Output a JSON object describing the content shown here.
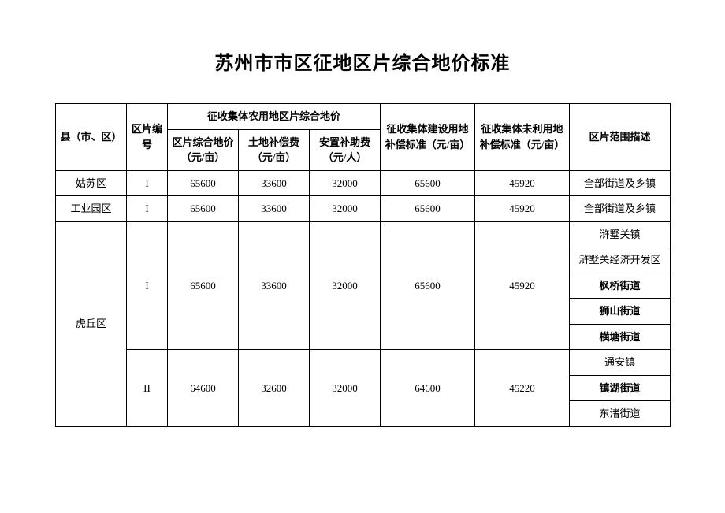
{
  "title": "苏州市市区征地区片综合地价标准",
  "header": {
    "county": "县（市、区）",
    "parcel": "区片编号",
    "ag_group": "征收集体农用地区片综合地价",
    "zhprice": "区片综合地价（元/亩）",
    "land": "土地补偿费（元/亩）",
    "resettle": "安置补助费（元/人）",
    "construction": "征收集体建设用地补偿标准（元/亩）",
    "unused": "征收集体未利用地补偿标准（元/亩）",
    "desc": "区片范围描述"
  },
  "rows": {
    "gusu": {
      "county": "姑苏区",
      "parcel": "I",
      "zhprice": "65600",
      "land": "33600",
      "resettle": "32000",
      "construction": "65600",
      "unused": "45920",
      "desc": "全部街道及乡镇"
    },
    "gyyq": {
      "county": "工业园区",
      "parcel": "I",
      "zhprice": "65600",
      "land": "33600",
      "resettle": "32000",
      "construction": "65600",
      "unused": "45920",
      "desc": "全部街道及乡镇"
    },
    "huqiu": {
      "county": "虎丘区",
      "p1": {
        "parcel": "I",
        "zhprice": "65600",
        "land": "33600",
        "resettle": "32000",
        "construction": "65600",
        "unused": "45920",
        "desc1": "浒墅关镇",
        "desc2": "浒墅关经济开发区",
        "desc3": "枫桥街道",
        "desc4": "狮山街道",
        "desc5": "横塘街道"
      },
      "p2": {
        "parcel": "II",
        "zhprice": "64600",
        "land": "32600",
        "resettle": "32000",
        "construction": "64600",
        "unused": "45220",
        "desc1": "通安镇",
        "desc2": "镇湖街道",
        "desc3": "东渚街道"
      }
    }
  },
  "style": {
    "background_color": "#ffffff",
    "border_color": "#000000",
    "text_color": "#000000",
    "title_fontsize": 24,
    "cell_fontsize": 13,
    "font_family": "SimSun"
  }
}
